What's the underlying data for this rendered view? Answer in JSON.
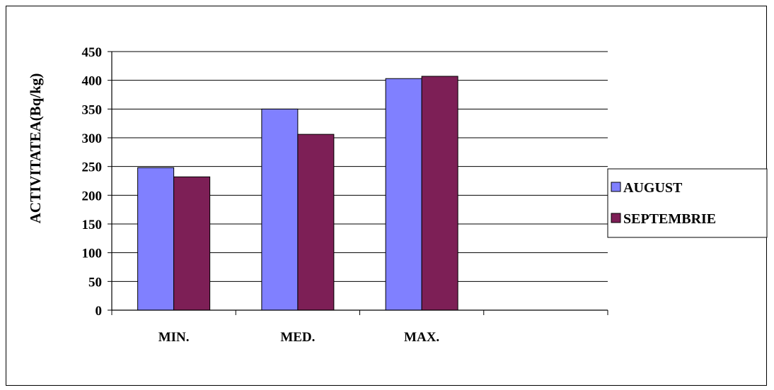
{
  "chart_data": {
    "type": "bar",
    "categories": [
      "MIN.",
      "MED.",
      "MAX.",
      ""
    ],
    "series": [
      {
        "name": "AUGUST",
        "values": [
          248,
          350,
          403,
          null
        ],
        "color": "#8080ff"
      },
      {
        "name": "SEPTEMBRIE",
        "values": [
          232,
          306,
          407,
          null
        ],
        "color": "#7d1f56"
      }
    ],
    "ylabel": "ACTIVITATEA(Bq/kg)",
    "xlabel": "",
    "ylim": [
      0,
      450
    ],
    "yticks": [
      0,
      50,
      100,
      150,
      200,
      250,
      300,
      350,
      400,
      450
    ],
    "grid": true,
    "legend_position": "right"
  }
}
